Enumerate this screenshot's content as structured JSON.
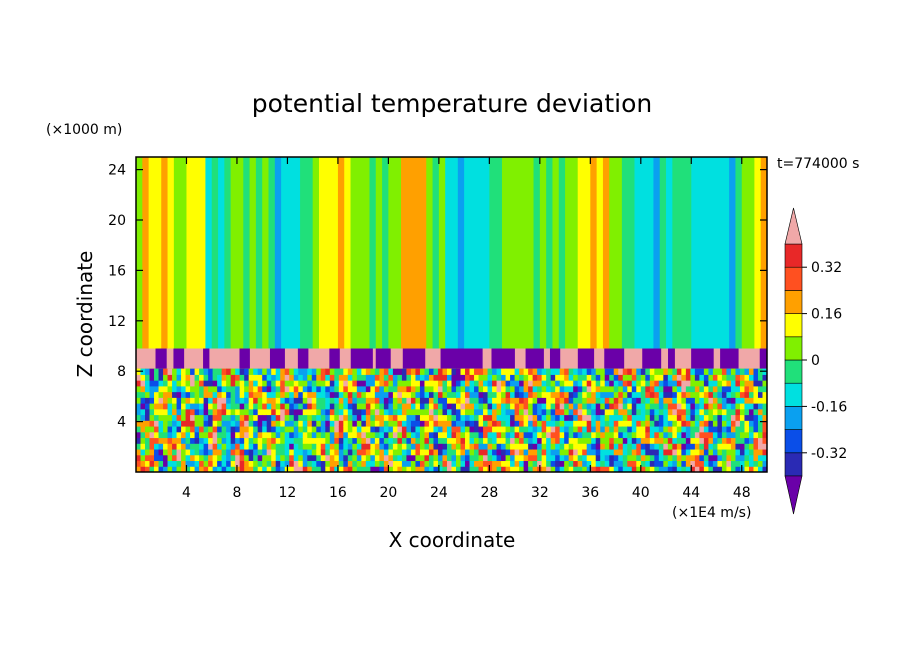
{
  "chart_data": {
    "type": "heatmap",
    "title": "potential temperature deviation",
    "xlabel": "X coordinate",
    "ylabel": "Z coordinate",
    "x_unit": "(×1E4 m/s)",
    "y_unit": "(×1000 m)",
    "time_label": "t=774000 s",
    "xlim": [
      0,
      50
    ],
    "ylim": [
      0,
      25
    ],
    "xticks": [
      "4",
      "8",
      "12",
      "16",
      "20",
      "24",
      "28",
      "32",
      "36",
      "40",
      "44",
      "48"
    ],
    "yticks": [
      "4",
      "8",
      "12",
      "16",
      "20",
      "24"
    ],
    "colorbar": {
      "levels": [
        -0.4,
        -0.32,
        -0.24,
        -0.16,
        -0.08,
        0,
        0.08,
        0.16,
        0.24,
        0.32,
        0.4
      ],
      "colors": [
        "#6a00a8",
        "#2a2ab4",
        "#0a4ee8",
        "#0aa0f0",
        "#00e0e0",
        "#20e07a",
        "#80f000",
        "#ffff00",
        "#ffa000",
        "#ff5020",
        "#e82828",
        "#f0a8a8"
      ],
      "labels": [
        "0.32",
        "0.16",
        "0",
        "-0.16",
        "-0.32"
      ],
      "label_values": [
        0.32,
        0.16,
        0,
        -0.16,
        -0.32
      ]
    },
    "regions": {
      "upper_layer": "mostly near 0 (green), vertical plume structures",
      "inversion_band_z": [
        8.2,
        9.8
      ],
      "inversion_value": "> 0.40",
      "convective_layer_z": [
        0,
        8.2
      ]
    }
  }
}
